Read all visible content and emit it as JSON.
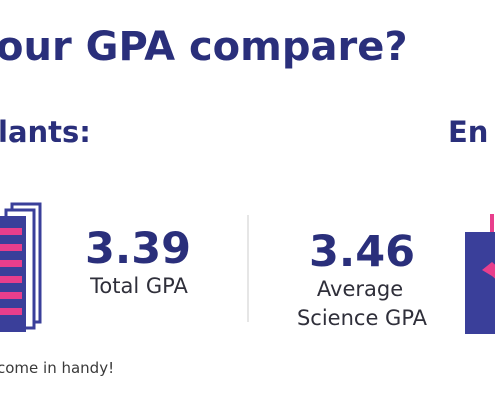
{
  "header": {
    "title": "our GPA compare?"
  },
  "sections": [
    {
      "heading": "lants:",
      "stats": [
        {
          "value": "3.39",
          "label": "Total GPA"
        },
        {
          "value": "3.46",
          "label_lines": [
            "Average",
            "Science GPA"
          ]
        }
      ],
      "note": "come in handy!"
    },
    {
      "heading": "En"
    }
  ]
}
